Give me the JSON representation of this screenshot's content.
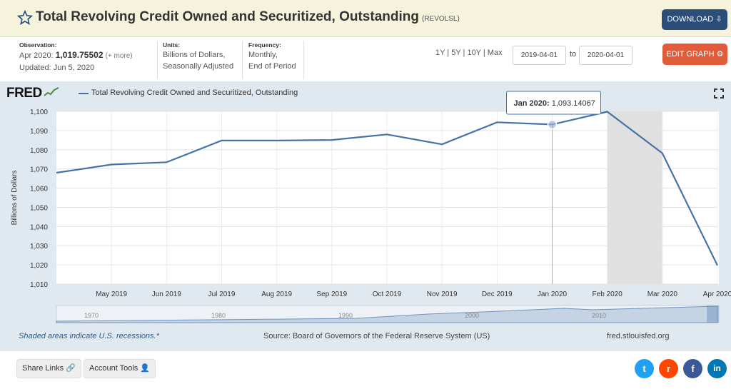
{
  "header": {
    "title": "Total Revolving Credit Owned and Securitized, Outstanding",
    "series_code": "(REVOLSL)",
    "download_label": "DOWNLOAD",
    "star_icon": "star-icon"
  },
  "meta": {
    "observation_label": "Observation:",
    "observation_date": "Apr 2020:",
    "observation_value": "1,019.75502",
    "observation_more": "(+ more)",
    "updated": "Updated: Jun 5, 2020",
    "units_label": "Units:",
    "units_line1": "Billions of Dollars,",
    "units_line2": "Seasonally Adjusted",
    "frequency_label": "Frequency:",
    "frequency_line1": "Monthly,",
    "frequency_line2": "End of Period"
  },
  "controls": {
    "ranges": "1Y | 5Y | 10Y | Max",
    "start_date": "2019-04-01",
    "to_label": "to",
    "end_date": "2020-04-01",
    "edit_label": "EDIT GRAPH"
  },
  "graph": {
    "logo": "FRED",
    "legend_label": "Total Revolving Credit Owned and Securitized, Outstanding",
    "tooltip_date": "Jan 2020:",
    "tooltip_value": "1,093.14067",
    "recession_note": "Shaded areas indicate U.S. recessions.*",
    "source": "Source: Board of Governors of the Federal Reserve System (US)",
    "site": "fred.stlouisfed.org"
  },
  "navigator": {
    "years": [
      "1970",
      "1980",
      "1990",
      "2000",
      "2010"
    ]
  },
  "bottom": {
    "share_label": "Share Links",
    "account_label": "Account Tools"
  },
  "colors": {
    "series": "#4572a7",
    "recession": "#e0e0e0",
    "download": "#2a4d7a",
    "edit": "#e25c3a"
  },
  "chart_data": {
    "type": "line",
    "title": "Total Revolving Credit Owned and Securitized, Outstanding",
    "ylabel": "Billions of Dollars",
    "ylim": [
      1010,
      1100
    ],
    "yticks": [
      1010,
      1020,
      1030,
      1040,
      1050,
      1060,
      1070,
      1080,
      1090,
      1100
    ],
    "xtick_labels": [
      "May 2019",
      "Jun 2019",
      "Jul 2019",
      "Aug 2019",
      "Sep 2019",
      "Oct 2019",
      "Nov 2019",
      "Dec 2019",
      "Jan 2020",
      "Feb 2020",
      "Mar 2020",
      "Apr 2020"
    ],
    "x": [
      "2019-04",
      "2019-05",
      "2019-06",
      "2019-07",
      "2019-08",
      "2019-09",
      "2019-10",
      "2019-11",
      "2019-12",
      "2020-01",
      "2020-02",
      "2020-03",
      "2020-04"
    ],
    "series": [
      {
        "name": "Total Revolving Credit Owned and Securitized, Outstanding",
        "values": [
          1068.0,
          1072.3,
          1073.5,
          1084.8,
          1084.8,
          1085.1,
          1088.0,
          1082.8,
          1094.3,
          1093.14067,
          1099.8,
          1078.2,
          1019.75502
        ]
      }
    ],
    "recession": {
      "start": "2020-02",
      "end": "2020-03"
    },
    "grid": true,
    "legend_position": "top-left"
  }
}
